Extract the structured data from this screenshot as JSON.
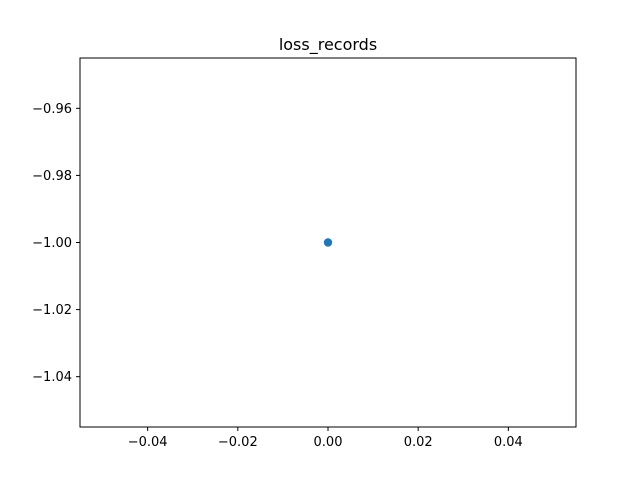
{
  "chart_data": {
    "type": "scatter",
    "title": "loss_records",
    "xlabel": "",
    "ylabel": "",
    "xlim": [
      -0.055,
      0.055
    ],
    "ylim": [
      -1.055,
      -0.945
    ],
    "x_ticks": [
      -0.04,
      -0.02,
      0.0,
      0.02,
      0.04
    ],
    "x_tick_labels": [
      "−0.04",
      "−0.02",
      "0.00",
      "0.02",
      "0.04"
    ],
    "y_ticks": [
      -0.96,
      -0.98,
      -1.0,
      -1.02,
      -1.04
    ],
    "y_tick_labels": [
      "−0.96",
      "−0.98",
      "−1.00",
      "−1.02",
      "−1.04"
    ],
    "grid": false,
    "series": [
      {
        "color": "#1f77b4",
        "points": [
          {
            "x": 0.0,
            "y": -1.0
          }
        ]
      }
    ]
  }
}
